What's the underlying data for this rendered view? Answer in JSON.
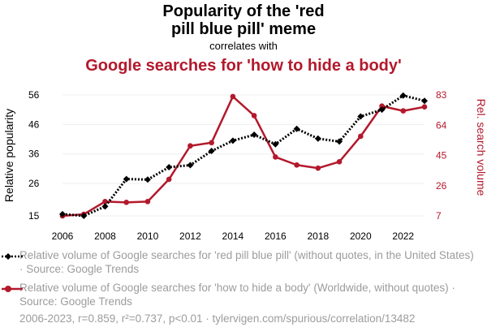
{
  "title_line1": "Popularity of the 'red",
  "title_line2": "pill blue pill' meme",
  "correlates_with": "correlates with",
  "title_line3": "Google searches for 'how to hide a body'",
  "colors": {
    "series1": "#000000",
    "series2": "#b3192c",
    "muted": "#9c9c9c"
  },
  "legend": {
    "series1": "Relative volume of Google searches for 'red pill blue pill' (without quotes, in the United States) · Source: Google Trends",
    "series2": "Relative volume of Google searches for 'how to hide a body' (Worldwide, without quotes) · Source: Google Trends"
  },
  "footer": "2006-2023, r=0.859, r²=0.737, p<0.01 · tylervigen.com/spurious/correlation/13482",
  "chart_data": {
    "type": "line",
    "x": [
      2006,
      2007,
      2008,
      2009,
      2010,
      2011,
      2012,
      2013,
      2014,
      2015,
      2016,
      2017,
      2018,
      2019,
      2020,
      2021,
      2022,
      2023
    ],
    "x_ticks": [
      "2006",
      "2008",
      "2010",
      "2012",
      "2014",
      "2016",
      "2018",
      "2020",
      "2022"
    ],
    "ylabel_left": "Relative popularity",
    "ylabel_right": "Rel. search volume",
    "yticks_left": [
      15,
      26,
      36,
      46,
      56
    ],
    "yticks_right": [
      7,
      26,
      45,
      64,
      83
    ],
    "ylim_left": [
      15,
      56
    ],
    "ylim_right": [
      7,
      83
    ],
    "grid": true,
    "series": [
      {
        "name": "Relative volume of Google searches for 'red pill blue pill'",
        "axis": "left",
        "style": "dotted",
        "marker": "diamond",
        "values": [
          15.6,
          15,
          18.2,
          27.5,
          27.3,
          31.5,
          32.2,
          37,
          40.5,
          42.5,
          39.3,
          44.5,
          41.2,
          40.2,
          48.7,
          51,
          55.8,
          54
        ]
      },
      {
        "name": "Relative volume of Google searches for 'how to hide a body'",
        "axis": "right",
        "style": "solid",
        "marker": "circle",
        "values": [
          7,
          8,
          16,
          15.5,
          16,
          30,
          51,
          53,
          82,
          70,
          44,
          39,
          37,
          41,
          57,
          76,
          73,
          75.5
        ]
      }
    ]
  }
}
